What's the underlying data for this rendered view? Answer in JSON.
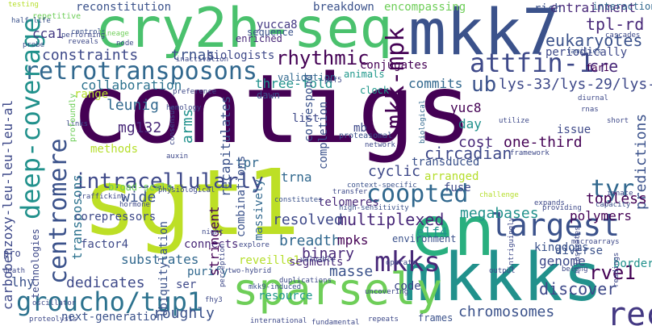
{
  "words": [
    {
      "text": "contigs",
      "color": "#440154"
    },
    {
      "text": "sgt1",
      "color": "#bddf26"
    },
    {
      "text": "cry2h-seq",
      "color": "#4ac16d"
    },
    {
      "text": "mkk7",
      "color": "#3b528b"
    },
    {
      "text": "mkkks",
      "color": "#21918c"
    },
    {
      "text": "en",
      "color": "#29af7f"
    },
    {
      "text": "sparsely",
      "color": "#6ece58"
    },
    {
      "text": "coopted",
      "color": "#31688e"
    },
    {
      "text": "largest",
      "color": "#3b528b"
    },
    {
      "text": "recombinase",
      "color": "#443983"
    },
    {
      "text": "retrotransposons",
      "color": "#31688e"
    },
    {
      "text": "groucho/tup1",
      "color": "#2c728e"
    },
    {
      "text": "attfin-1",
      "color": "#3e4989"
    },
    {
      "text": "deep-coverage",
      "color": "#21918c"
    },
    {
      "text": "centromere",
      "color": "#3b528b"
    },
    {
      "text": "rhythmic",
      "color": "#440154"
    },
    {
      "text": "intracellularly",
      "color": "#3e4989"
    },
    {
      "text": "mkk-mpk",
      "color": "#440154"
    },
    {
      "text": "mkks",
      "color": "#482878"
    },
    {
      "text": "tyr",
      "color": "#31688e"
    },
    {
      "text": "ub",
      "color": "#3b528b"
    },
    {
      "text": "tpl-rd",
      "color": "#482878"
    },
    {
      "text": "eukaryotes",
      "color": "#3b528b"
    },
    {
      "text": "lys-33/lys-29/lys-6",
      "color": "#3e4989"
    },
    {
      "text": "carbobenzoxy-leu-leu-leu-al",
      "color": "#3e4989"
    },
    {
      "text": "multiplexed",
      "color": "#482878"
    },
    {
      "text": "circadian",
      "color": "#3e4989"
    },
    {
      "text": "one-third",
      "color": "#440154"
    },
    {
      "text": "megabases",
      "color": "#21918c"
    },
    {
      "text": "rve1",
      "color": "#440154"
    },
    {
      "text": "predictions",
      "color": "#3b528b"
    },
    {
      "text": "topless",
      "color": "#440154"
    },
    {
      "text": "polymers",
      "color": "#440154"
    },
    {
      "text": "reconstitution",
      "color": "#3b528b"
    },
    {
      "text": "constraints",
      "color": "#3e4989"
    },
    {
      "text": "trnas",
      "color": "#3b528b"
    },
    {
      "text": "collaboration",
      "color": "#2c728e"
    },
    {
      "text": "leunig",
      "color": "#31688e"
    },
    {
      "text": "mg132",
      "color": "#482878"
    },
    {
      "text": "cca1",
      "color": "#443983"
    },
    {
      "text": "yucca8",
      "color": "#443983"
    },
    {
      "text": "yuc8",
      "color": "#440154"
    },
    {
      "text": "breakdown",
      "color": "#3b528b"
    },
    {
      "text": "entrainment",
      "color": "#482878"
    },
    {
      "text": "cre",
      "color": "#482878"
    },
    {
      "text": "resolved",
      "color": "#3e4989"
    },
    {
      "text": "breadth",
      "color": "#31688e"
    },
    {
      "text": "binary",
      "color": "#482878"
    },
    {
      "text": "mpks",
      "color": "#440154"
    },
    {
      "text": "dedicates",
      "color": "#3e4989"
    },
    {
      "text": "reveille1",
      "color": "#b5de2b"
    },
    {
      "text": "segments",
      "color": "#482878"
    },
    {
      "text": "masse",
      "color": "#3b528b"
    },
    {
      "text": "chromosomes",
      "color": "#3b528b"
    },
    {
      "text": "discover",
      "color": "#3e4989"
    },
    {
      "text": "resource",
      "color": "#1f988b"
    },
    {
      "text": "roughly",
      "color": "#3b528b"
    },
    {
      "text": "wide",
      "color": "#3b528b"
    },
    {
      "text": "transposons",
      "color": "#2c728e"
    },
    {
      "text": "lhy",
      "color": "#3b528b"
    },
    {
      "text": "substrates",
      "color": "#31688e"
    },
    {
      "text": "arms",
      "color": "#21918c"
    },
    {
      "text": "tpr",
      "color": "#31688e"
    },
    {
      "text": "trna",
      "color": "#31688e"
    },
    {
      "text": "cyclic",
      "color": "#3e4989"
    },
    {
      "text": "arranged",
      "color": "#b5de2b"
    },
    {
      "text": "genome",
      "color": "#3e4989"
    },
    {
      "text": "elf4",
      "color": "#21918c"
    },
    {
      "text": "cost",
      "color": "#482878"
    },
    {
      "text": "day",
      "color": "#21918c"
    },
    {
      "text": "commits",
      "color": "#31688e"
    },
    {
      "text": "three-fold",
      "color": "#21918c"
    },
    {
      "text": "methods",
      "color": "#b5de2b"
    },
    {
      "text": "range",
      "color": "#b5de2b"
    },
    {
      "text": "factor4",
      "color": "#3e4989"
    },
    {
      "text": "purify",
      "color": "#31688e"
    },
    {
      "text": "connects",
      "color": "#482878"
    },
    {
      "text": "ubiquitylation",
      "color": "#3b528b"
    },
    {
      "text": "massively",
      "color": "#31688e"
    },
    {
      "text": "recapitulates",
      "color": "#3b528b"
    },
    {
      "text": "combinations",
      "color": "#3b528b"
    },
    {
      "text": "stringent",
      "color": "#440154"
    },
    {
      "text": "corepressors",
      "color": "#3e4989"
    },
    {
      "text": "broad-scale",
      "color": "#6ece58"
    },
    {
      "text": "biologists",
      "color": "#3e4989"
    },
    {
      "text": "conjugates",
      "color": "#440154"
    },
    {
      "text": "enriched",
      "color": "#482878"
    },
    {
      "text": "encompassing",
      "color": "#6ece58"
    },
    {
      "text": "periodically",
      "color": "#3e4989"
    },
    {
      "text": "interactions",
      "color": "#31688e"
    },
    {
      "text": "kingdoms",
      "color": "#3b528b"
    },
    {
      "text": "diverse",
      "color": "#3b528b"
    },
    {
      "text": "telomeres",
      "color": "#482878"
    },
    {
      "text": "correspond",
      "color": "#3b528b"
    },
    {
      "text": "completion",
      "color": "#3b528b"
    },
    {
      "text": "transduced",
      "color": "#3b528b"
    },
    {
      "text": "validation",
      "color": "#31688e"
    },
    {
      "text": "animals",
      "color": "#1f988b"
    },
    {
      "text": "clock",
      "color": "#1f988b"
    },
    {
      "text": "issue",
      "color": "#3e4989"
    },
    {
      "text": "fuse",
      "color": "#3e4989"
    },
    {
      "text": "code",
      "color": "#3e4989"
    },
    {
      "text": "environment",
      "color": "#3b528b"
    },
    {
      "text": "technologies",
      "color": "#3e4989"
    },
    {
      "text": "next-generation",
      "color": "#3b528b"
    },
    {
      "text": "borders",
      "color": "#21918c"
    },
    {
      "text": "frames",
      "color": "#3b528b"
    },
    {
      "text": "ser",
      "color": "#3e4989"
    },
    {
      "text": "list",
      "color": "#3e4989"
    },
    {
      "text": "mb",
      "color": "#3e4989"
    },
    {
      "text": "rich",
      "color": "#3b528b"
    },
    {
      "text": "sequence",
      "color": "#3b528b"
    },
    {
      "text": "repetitive",
      "color": "#6ece58"
    },
    {
      "text": "half-life",
      "color": "#3b528b"
    },
    {
      "text": "testing",
      "color": "#b5de2b"
    },
    {
      "text": "controls",
      "color": "#3b528b"
    },
    {
      "text": "probe",
      "color": "#3b528b"
    },
    {
      "text": "performing",
      "color": "#3e4989"
    },
    {
      "text": "reveals",
      "color": "#3e4989"
    },
    {
      "text": "lineage",
      "color": "#6ece58"
    },
    {
      "text": "node",
      "color": "#3e4989"
    },
    {
      "text": "inactivation",
      "color": "#3e4989"
    },
    {
      "text": "families",
      "color": "#3b528b"
    },
    {
      "text": "cascades",
      "color": "#3e4989"
    },
    {
      "text": "far1",
      "color": "#440154"
    },
    {
      "text": "dawn",
      "color": "#3b528b"
    },
    {
      "text": "preference",
      "color": "#3e4989"
    },
    {
      "text": "homology",
      "color": "#3e4989"
    },
    {
      "text": "consensus",
      "color": "#3e4989"
    },
    {
      "text": "links",
      "color": "#3e4989"
    },
    {
      "text": "profoundly",
      "color": "#6ece58"
    },
    {
      "text": "auxin",
      "color": "#3e4989"
    },
    {
      "text": "trafficking",
      "color": "#3e4989"
    },
    {
      "text": "hormone",
      "color": "#3e4989"
    },
    {
      "text": "physiological",
      "color": "#3e4989"
    },
    {
      "text": "pif5",
      "color": "#3e4989"
    },
    {
      "text": "network",
      "color": "#3e4989"
    },
    {
      "text": "proteasomal",
      "color": "#3b528b"
    },
    {
      "text": "biological",
      "color": "#31688e"
    },
    {
      "text": "transfer",
      "color": "#3e4989"
    },
    {
      "text": "context-specific",
      "color": "#3b528b"
    },
    {
      "text": "constitutes",
      "color": "#3b528b"
    },
    {
      "text": "high-sensitivity",
      "color": "#3b528b"
    },
    {
      "text": "challenge",
      "color": "#b5de2b"
    },
    {
      "text": "framework",
      "color": "#3e4989"
    },
    {
      "text": "utilize",
      "color": "#3e4989"
    },
    {
      "text": "diurnal",
      "color": "#3e4989"
    },
    {
      "text": "rnas",
      "color": "#3e4989"
    },
    {
      "text": "short",
      "color": "#3e4989"
    },
    {
      "text": "capacity",
      "color": "#3b528b"
    },
    {
      "text": "innate",
      "color": "#3e4989"
    },
    {
      "text": "expands",
      "color": "#3e4989"
    },
    {
      "text": "providing",
      "color": "#3e4989"
    },
    {
      "text": "microarrays",
      "color": "#3e4989"
    },
    {
      "text": "belong",
      "color": "#3e4989"
    },
    {
      "text": "illustrates",
      "color": "#3e4989"
    },
    {
      "text": "readings",
      "color": "#3e4989"
    },
    {
      "text": "output",
      "color": "#3e4989"
    },
    {
      "text": "intriguingly",
      "color": "#3e4989"
    },
    {
      "text": "operate",
      "color": "#3e4989"
    },
    {
      "text": "duplications",
      "color": "#3e4989"
    },
    {
      "text": "mkk9-induced",
      "color": "#3b528b"
    },
    {
      "text": "two-hybrid",
      "color": "#3e4989"
    },
    {
      "text": "explore",
      "color": "#3e4989"
    },
    {
      "text": "night",
      "color": "#3e4989"
    },
    {
      "text": "fhy3",
      "color": "#3e4989"
    },
    {
      "text": "perception",
      "color": "#3e4989"
    },
    {
      "text": "valuable",
      "color": "#3e4989"
    },
    {
      "text": "international",
      "color": "#3e4989"
    },
    {
      "text": "fundamental",
      "color": "#3e4989"
    },
    {
      "text": "repeats",
      "color": "#3e4989"
    },
    {
      "text": "uncovering",
      "color": "#3e4989"
    },
    {
      "text": "pro",
      "color": "#3e4989"
    },
    {
      "text": "death",
      "color": "#3e4989"
    },
    {
      "text": "proteolysis",
      "color": "#3e4989"
    },
    {
      "text": "oscillator",
      "color": "#3e4989"
    }
  ]
}
